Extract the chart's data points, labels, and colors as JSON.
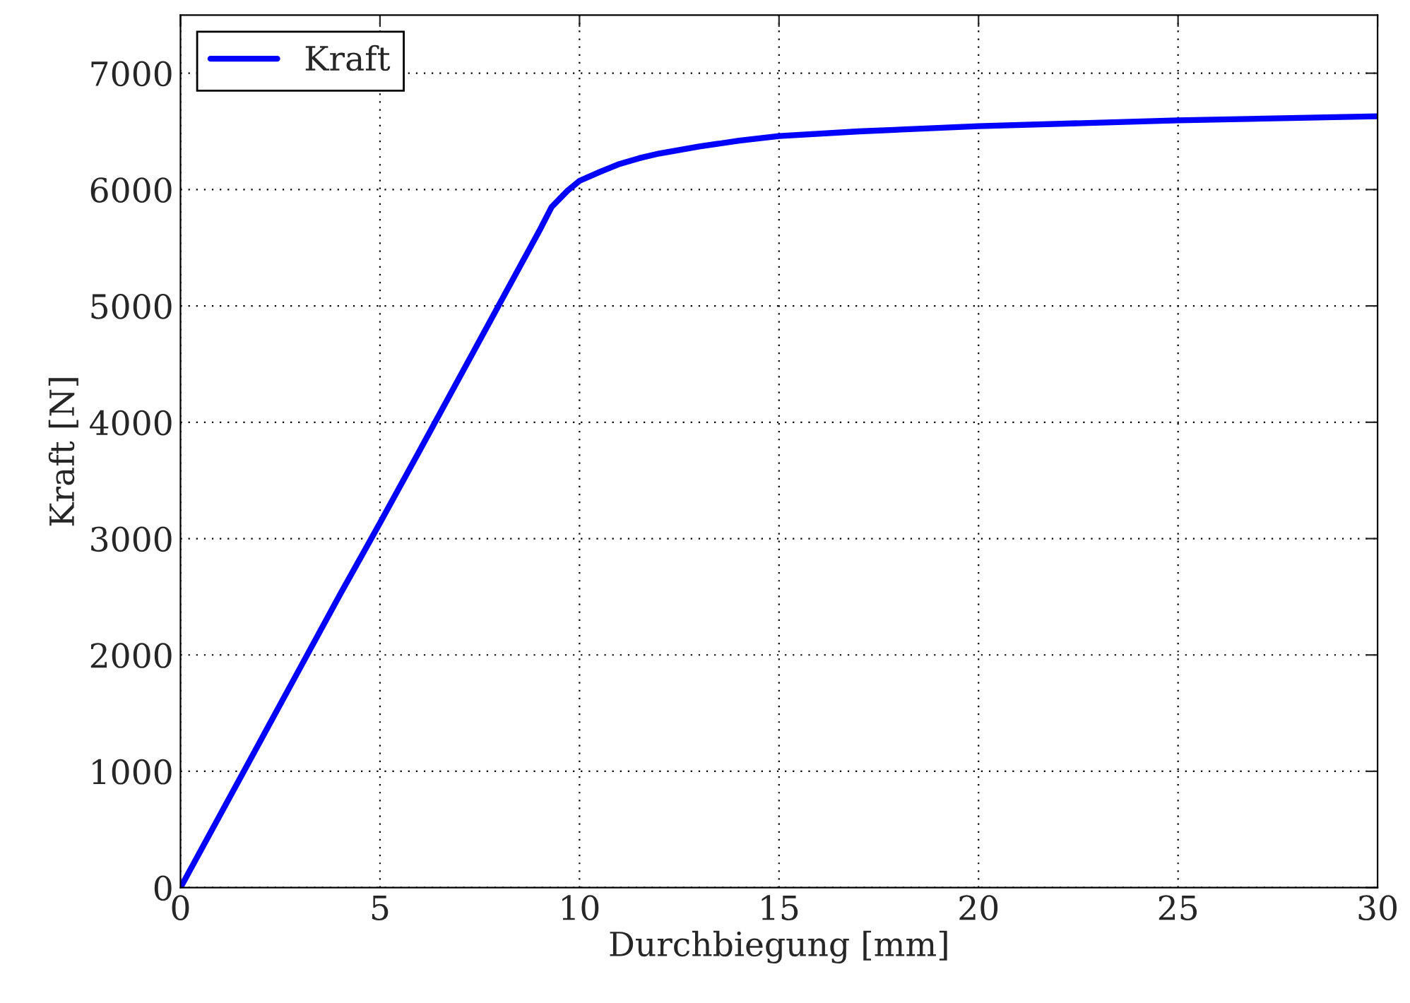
{
  "chart_data": {
    "type": "line",
    "xlabel": "Durchbiegung [mm]",
    "ylabel": "Kraft [N]",
    "xlim": [
      0,
      30
    ],
    "ylim": [
      0,
      7500
    ],
    "xticks": [
      0,
      5,
      10,
      15,
      20,
      25,
      30
    ],
    "yticks": [
      0,
      1000,
      2000,
      3000,
      4000,
      5000,
      6000,
      7000
    ],
    "grid": true,
    "legend": "top left",
    "line_style": "solid",
    "marker": "none",
    "series": [
      {
        "name": "Kraft",
        "color": "#0000ff",
        "x": [
          0,
          1,
          2,
          3,
          4,
          5,
          6,
          7,
          8,
          9,
          9.3,
          9.7,
          10,
          10.5,
          11,
          11.5,
          12,
          13,
          14,
          15,
          17,
          20,
          25,
          30
        ],
        "values": [
          0,
          630,
          1260,
          1890,
          2520,
          3135,
          3760,
          4390,
          5020,
          5650,
          5850,
          5990,
          6075,
          6150,
          6220,
          6270,
          6310,
          6370,
          6420,
          6460,
          6500,
          6545,
          6595,
          6630
        ]
      }
    ]
  }
}
